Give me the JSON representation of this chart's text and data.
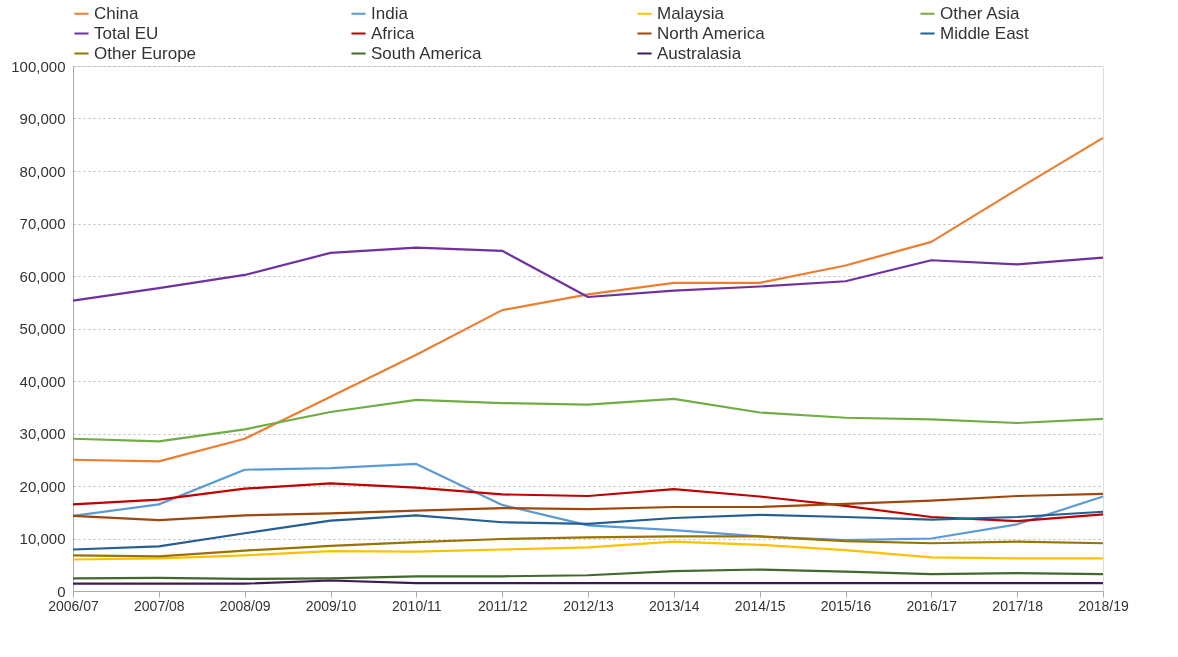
{
  "chart_data": {
    "type": "line",
    "categories": [
      "2006/07",
      "2007/08",
      "2008/09",
      "2009/10",
      "2010/11",
      "2011/12",
      "2012/13",
      "2013/14",
      "2014/15",
      "2015/16",
      "2016/17",
      "2017/18",
      "2018/19"
    ],
    "ylim": [
      0,
      100000
    ],
    "yticks": [
      {
        "value": 0,
        "label": "0"
      },
      {
        "value": 10000,
        "label": "10,000"
      },
      {
        "value": 20000,
        "label": "20,000"
      },
      {
        "value": 30000,
        "label": "30,000"
      },
      {
        "value": 40000,
        "label": "40,000"
      },
      {
        "value": 50000,
        "label": "50,000"
      },
      {
        "value": 60000,
        "label": "60,000"
      },
      {
        "value": 70000,
        "label": "70,000"
      },
      {
        "value": 80000,
        "label": "80,000"
      },
      {
        "value": 90000,
        "label": "90,000"
      },
      {
        "value": 100000,
        "label": "100,000"
      }
    ],
    "grid": "y",
    "legend": "top",
    "marker": "none",
    "line_style": "solid",
    "series": [
      {
        "name": "China",
        "color": "#ed7d31",
        "values": [
          25000,
          24700,
          29000,
          37000,
          45000,
          53500,
          56500,
          58700,
          58700,
          62000,
          66500,
          76500,
          86300
        ]
      },
      {
        "name": "India",
        "color": "#5b9bd5",
        "values": [
          14300,
          16500,
          23100,
          23400,
          24200,
          16400,
          12500,
          11600,
          10400,
          9700,
          10000,
          12700,
          18000
        ]
      },
      {
        "name": "Malaysia",
        "color": "#ffc000",
        "values": [
          6000,
          6200,
          6800,
          7600,
          7500,
          7900,
          8300,
          9400,
          8800,
          7800,
          6400,
          6200,
          6200
        ]
      },
      {
        "name": "Other Asia",
        "color": "#70ad47",
        "values": [
          29000,
          28500,
          30800,
          34100,
          36400,
          35800,
          35500,
          36600,
          34000,
          33000,
          32700,
          32000,
          32800
        ]
      },
      {
        "name": "Total EU",
        "color": "#7030a0",
        "values": [
          55300,
          57700,
          60200,
          64400,
          65400,
          64800,
          56000,
          57200,
          58000,
          59000,
          63000,
          62200,
          63500
        ]
      },
      {
        "name": "Africa",
        "color": "#c00000",
        "values": [
          16500,
          17400,
          19500,
          20500,
          19700,
          18400,
          18100,
          19400,
          18000,
          16200,
          14100,
          13300,
          14600
        ]
      },
      {
        "name": "North America",
        "color": "#9e480e",
        "values": [
          14300,
          13500,
          14400,
          14800,
          15300,
          15800,
          15600,
          16000,
          16000,
          16600,
          17200,
          18100,
          18500
        ]
      },
      {
        "name": "Middle East",
        "color": "#255e91",
        "values": [
          7900,
          8500,
          11000,
          13400,
          14400,
          13100,
          12800,
          13900,
          14500,
          14100,
          13600,
          14100,
          15100
        ]
      },
      {
        "name": "Other Europe",
        "color": "#997300",
        "values": [
          6800,
          6600,
          7700,
          8600,
          9300,
          9900,
          10200,
          10400,
          10400,
          9500,
          9100,
          9400,
          9100
        ]
      },
      {
        "name": "South America",
        "color": "#43682b",
        "values": [
          2400,
          2500,
          2300,
          2400,
          2800,
          2800,
          3000,
          3800,
          4100,
          3700,
          3200,
          3400,
          3200
        ]
      },
      {
        "name": "Australasia",
        "color": "#3d1a57",
        "values": [
          1400,
          1400,
          1400,
          2000,
          1500,
          1500,
          1500,
          1500,
          1500,
          1500,
          1500,
          1500,
          1500
        ]
      }
    ]
  }
}
